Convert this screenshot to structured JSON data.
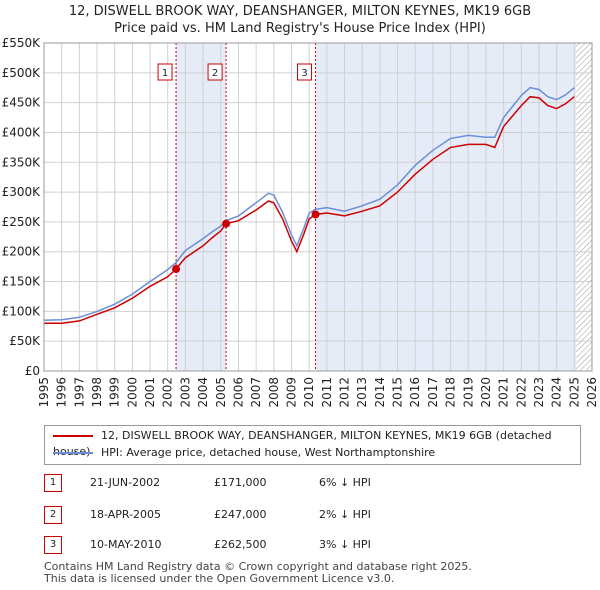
{
  "chart_data": {
    "type": "line",
    "title": "12, DISWELL BROOK WAY, DEANSHANGER, MILTON KEYNES, MK19 6GB",
    "subtitle": "Price paid vs. HM Land Registry's House Price Index (HPI)",
    "xlabel": "",
    "ylabel": "",
    "xlim": [
      1995,
      2026
    ],
    "ylim": [
      0,
      550000
    ],
    "grid": true,
    "yticks": [
      0,
      50000,
      100000,
      150000,
      200000,
      250000,
      300000,
      350000,
      400000,
      450000,
      500000,
      550000
    ],
    "ytick_labels": [
      "£0",
      "£50K",
      "£100K",
      "£150K",
      "£200K",
      "£250K",
      "£300K",
      "£350K",
      "£400K",
      "£450K",
      "£500K",
      "£550K"
    ],
    "xticks": [
      1995,
      1996,
      1997,
      1998,
      1999,
      2000,
      2001,
      2002,
      2003,
      2004,
      2005,
      2006,
      2007,
      2008,
      2009,
      2010,
      2011,
      2012,
      2013,
      2014,
      2015,
      2016,
      2017,
      2018,
      2019,
      2020,
      2021,
      2022,
      2023,
      2024,
      2025,
      2026
    ],
    "xtick_labels": [
      "1995",
      "1996",
      "1997",
      "1998",
      "1999",
      "2000",
      "2001",
      "2002",
      "2003",
      "2004",
      "2005",
      "2006",
      "2007",
      "2008",
      "2009",
      "2010",
      "2011",
      "2012",
      "2013",
      "2014",
      "2015",
      "2016",
      "2017",
      "2018",
      "2019",
      "2020",
      "2021",
      "2022",
      "2023",
      "2024",
      "2025",
      "2026"
    ],
    "shaded_periods": [
      [
        2002.47,
        2005.3
      ],
      [
        2010.36,
        2025.1
      ]
    ],
    "hatched_from": 2025.1,
    "series": [
      {
        "name": "12, DISWELL BROOK WAY, DEANSHANGER, MILTON KEYNES, MK19 6GB (detached house)",
        "color": "#cc0000",
        "x": [
          1995,
          1996,
          1997,
          1998,
          1999,
          2000,
          2001,
          2002,
          2002.47,
          2003,
          2004,
          2004.5,
          2005,
          2005.3,
          2006,
          2007,
          2007.7,
          2008,
          2008.5,
          2009,
          2009.3,
          2009.7,
          2010,
          2010.36,
          2011,
          2012,
          2013,
          2014,
          2015,
          2016,
          2017,
          2018,
          2019,
          2020,
          2020.5,
          2021,
          2022,
          2022.5,
          2023,
          2023.5,
          2024,
          2024.5,
          2025
        ],
        "y": [
          80000,
          80000,
          84000,
          95000,
          106000,
          122000,
          142000,
          158000,
          171000,
          190000,
          210000,
          223000,
          235000,
          247000,
          252000,
          270000,
          285000,
          282000,
          255000,
          218000,
          200000,
          230000,
          255000,
          262500,
          265000,
          260000,
          268000,
          277000,
          300000,
          330000,
          355000,
          375000,
          380000,
          380000,
          375000,
          410000,
          445000,
          460000,
          458000,
          445000,
          440000,
          448000,
          460000
        ]
      },
      {
        "name": "HPI: Average price, detached house, West Northamptonshire",
        "color": "#6b8ed6",
        "x": [
          1995,
          1996,
          1997,
          1998,
          1999,
          2000,
          2001,
          2002,
          2002.47,
          2003,
          2004,
          2004.5,
          2005,
          2005.3,
          2006,
          2007,
          2007.7,
          2008,
          2008.5,
          2009,
          2009.3,
          2009.7,
          2010,
          2010.36,
          2011,
          2012,
          2013,
          2014,
          2015,
          2016,
          2017,
          2018,
          2019,
          2020,
          2020.5,
          2021,
          2022,
          2022.5,
          2023,
          2023.5,
          2024,
          2024.5,
          2025
        ],
        "y": [
          85000,
          86000,
          90000,
          100000,
          112000,
          129000,
          150000,
          170000,
          182000,
          202000,
          222000,
          233000,
          243000,
          252000,
          260000,
          282000,
          298000,
          295000,
          266000,
          228000,
          210000,
          240000,
          265000,
          271000,
          274000,
          268000,
          277000,
          288000,
          312000,
          345000,
          370000,
          390000,
          395000,
          392000,
          392000,
          425000,
          462000,
          475000,
          472000,
          460000,
          455000,
          463000,
          475000
        ]
      }
    ],
    "sales": [
      {
        "label": "1",
        "x": 2002.47,
        "y": 171000
      },
      {
        "label": "2",
        "x": 2005.3,
        "y": 247000
      },
      {
        "label": "3",
        "x": 2010.36,
        "y": 262500
      }
    ]
  },
  "legend": {
    "property": "12, DISWELL BROOK WAY, DEANSHANGER, MILTON KEYNES, MK19 6GB (detached house)",
    "hpi": "HPI: Average price, detached house, West Northamptonshire"
  },
  "table": [
    {
      "num": "1",
      "date": "21-JUN-2002",
      "price": "£171,000",
      "hpi": "6% ↓ HPI"
    },
    {
      "num": "2",
      "date": "18-APR-2005",
      "price": "£247,000",
      "hpi": "2% ↓ HPI"
    },
    {
      "num": "3",
      "date": "10-MAY-2010",
      "price": "£262,500",
      "hpi": "3% ↓ HPI"
    }
  ],
  "footer": {
    "line1": "Contains HM Land Registry data © Crown copyright and database right 2025.",
    "line2": "This data is licensed under the Open Government Licence v3.0."
  }
}
